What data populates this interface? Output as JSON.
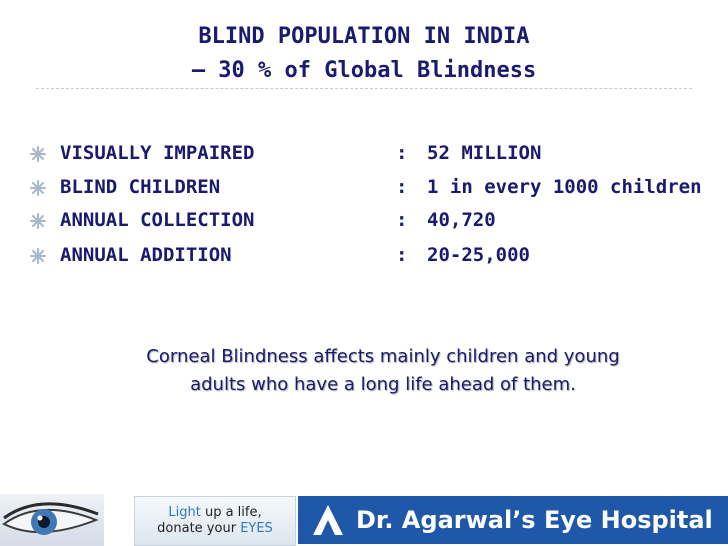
{
  "title": {
    "line1": "BLIND POPULATION IN INDIA",
    "line2": "– 30 % of Global Blindness"
  },
  "rows": [
    {
      "label": "VISUALLY IMPAIRED",
      "colon": ":",
      "value": "52 MILLION"
    },
    {
      "label": "BLIND CHILDREN",
      "colon": ":",
      "value": "1 in every 1000 children"
    },
    {
      "label": "ANNUAL COLLECTION",
      "colon": ":",
      "value": "40,720"
    },
    {
      "label": "ANNUAL ADDITION",
      "colon": ":",
      "value": "20-25,000"
    }
  ],
  "note": {
    "line1": "Corneal Blindness affects mainly children and young",
    "line2": "adults who have a long life ahead of them."
  },
  "footer": {
    "tagline_light": "Light",
    "tagline_rest1": " up a life,",
    "tagline_line2a": "donate your ",
    "tagline_eyes": "EYES",
    "brand_name": "Dr. Agarwal’s Eye Hospital"
  },
  "icons": {
    "bullet": "snowflake-bullet-icon",
    "eye": "eye-icon",
    "brand_logo": "arrow-logo-icon"
  },
  "colors": {
    "text": "#1a1a6e",
    "brand_bg": "#1f58a8",
    "highlight": "#2e78c2"
  }
}
